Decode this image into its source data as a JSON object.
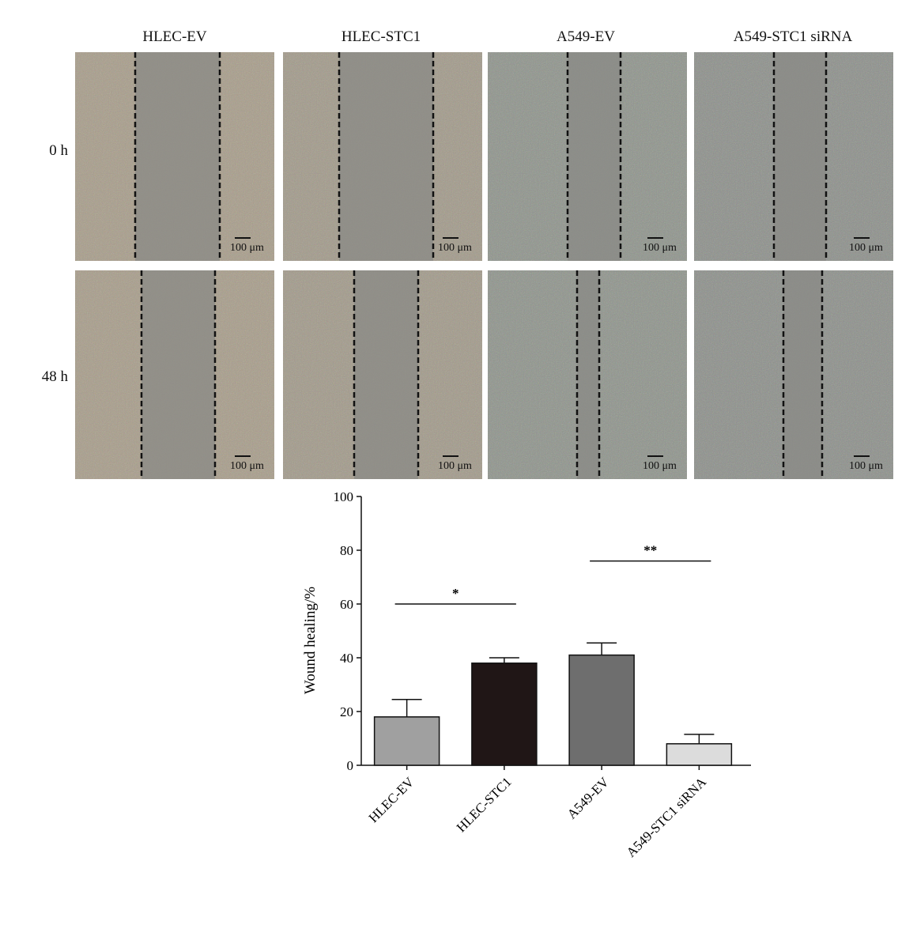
{
  "figure": {
    "columns": [
      "HLEC-EV",
      "HLEC-STC1",
      "A549-EV",
      "A549-STC1 siRNA"
    ],
    "rows": [
      "0 h",
      "48 h"
    ],
    "scale_bar": "100 μm",
    "panel_colors": [
      "#a89d8a",
      "#a29a8a",
      "#8f948c",
      "#8d908b"
    ]
  },
  "chart_data": {
    "type": "bar",
    "categories": [
      "HLEC-EV",
      "HLEC-STC1",
      "A549-EV",
      "A549-STC1 siRNA"
    ],
    "values": [
      18,
      38,
      41,
      8
    ],
    "errors": [
      6.5,
      2,
      4.5,
      3.5
    ],
    "colors": [
      "#a0a0a0",
      "#201616",
      "#6e6e6e",
      "#dcdcdc"
    ],
    "xlabel": "",
    "ylabel": "Wound healing/%",
    "ylim": [
      0,
      100
    ],
    "yticks": [
      0,
      20,
      40,
      60,
      80,
      100
    ],
    "grid": false,
    "annotations": [
      {
        "from": 0,
        "to": 1,
        "y": 60,
        "text": "*"
      },
      {
        "from": 2,
        "to": 3,
        "y": 76,
        "text": "**"
      }
    ]
  }
}
